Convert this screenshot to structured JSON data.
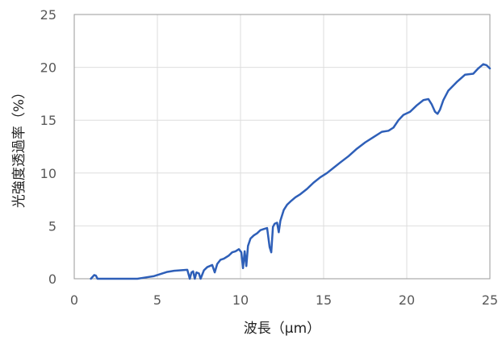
{
  "chart_data": {
    "type": "line",
    "xlabel": "波長（μm）",
    "ylabel": "光強度透過率（%）",
    "xlim": [
      0,
      25
    ],
    "ylim": [
      0,
      25
    ],
    "xticks": [
      "0",
      "5",
      "10",
      "15",
      "20",
      "25"
    ],
    "yticks": [
      "0",
      "5",
      "10",
      "15",
      "20",
      "25"
    ],
    "grid": true,
    "legend": "none",
    "line_color": "#2e5fb8",
    "series": [
      {
        "x": [
          1.0,
          1.2,
          1.3,
          1.4,
          1.6,
          2.0,
          3.0,
          3.8,
          4.2,
          4.8,
          5.2,
          5.6,
          6.0,
          6.4,
          6.8,
          6.95,
          7.05,
          7.15,
          7.25,
          7.35,
          7.5,
          7.6,
          7.8,
          8.0,
          8.3,
          8.45,
          8.6,
          8.8,
          9.0,
          9.3,
          9.5,
          9.7,
          9.9,
          10.05,
          10.15,
          10.25,
          10.35,
          10.45,
          10.6,
          10.8,
          11.0,
          11.2,
          11.4,
          11.6,
          11.75,
          11.85,
          11.95,
          12.05,
          12.2,
          12.3,
          12.4,
          12.6,
          12.8,
          13.0,
          13.3,
          13.6,
          14.0,
          14.4,
          14.8,
          15.2,
          15.6,
          16.0,
          16.5,
          17.0,
          17.5,
          18.0,
          18.5,
          18.9,
          19.2,
          19.5,
          19.8,
          20.2,
          20.6,
          21.0,
          21.3,
          21.5,
          21.7,
          21.85,
          22.0,
          22.2,
          22.5,
          23.0,
          23.5,
          24.0,
          24.3,
          24.6,
          24.8,
          25.0
        ],
        "y": [
          0.0,
          0.35,
          0.3,
          0.0,
          0.0,
          0.0,
          0.0,
          0.0,
          0.1,
          0.25,
          0.45,
          0.65,
          0.75,
          0.8,
          0.85,
          0.0,
          0.6,
          0.7,
          0.0,
          0.6,
          0.5,
          0.0,
          0.8,
          1.1,
          1.3,
          0.6,
          1.4,
          1.8,
          1.9,
          2.2,
          2.5,
          2.6,
          2.8,
          2.5,
          1.0,
          2.6,
          1.2,
          3.1,
          3.8,
          4.1,
          4.3,
          4.6,
          4.7,
          4.8,
          3.0,
          2.5,
          4.9,
          5.2,
          5.3,
          4.4,
          5.5,
          6.5,
          7.0,
          7.3,
          7.7,
          8.0,
          8.5,
          9.1,
          9.6,
          10.0,
          10.5,
          11.0,
          11.6,
          12.3,
          12.9,
          13.4,
          13.9,
          14.0,
          14.3,
          15.0,
          15.5,
          15.8,
          16.4,
          16.9,
          17.0,
          16.5,
          15.8,
          15.6,
          16.0,
          16.9,
          17.8,
          18.6,
          19.3,
          19.4,
          19.9,
          20.3,
          20.2,
          19.9
        ]
      }
    ]
  }
}
